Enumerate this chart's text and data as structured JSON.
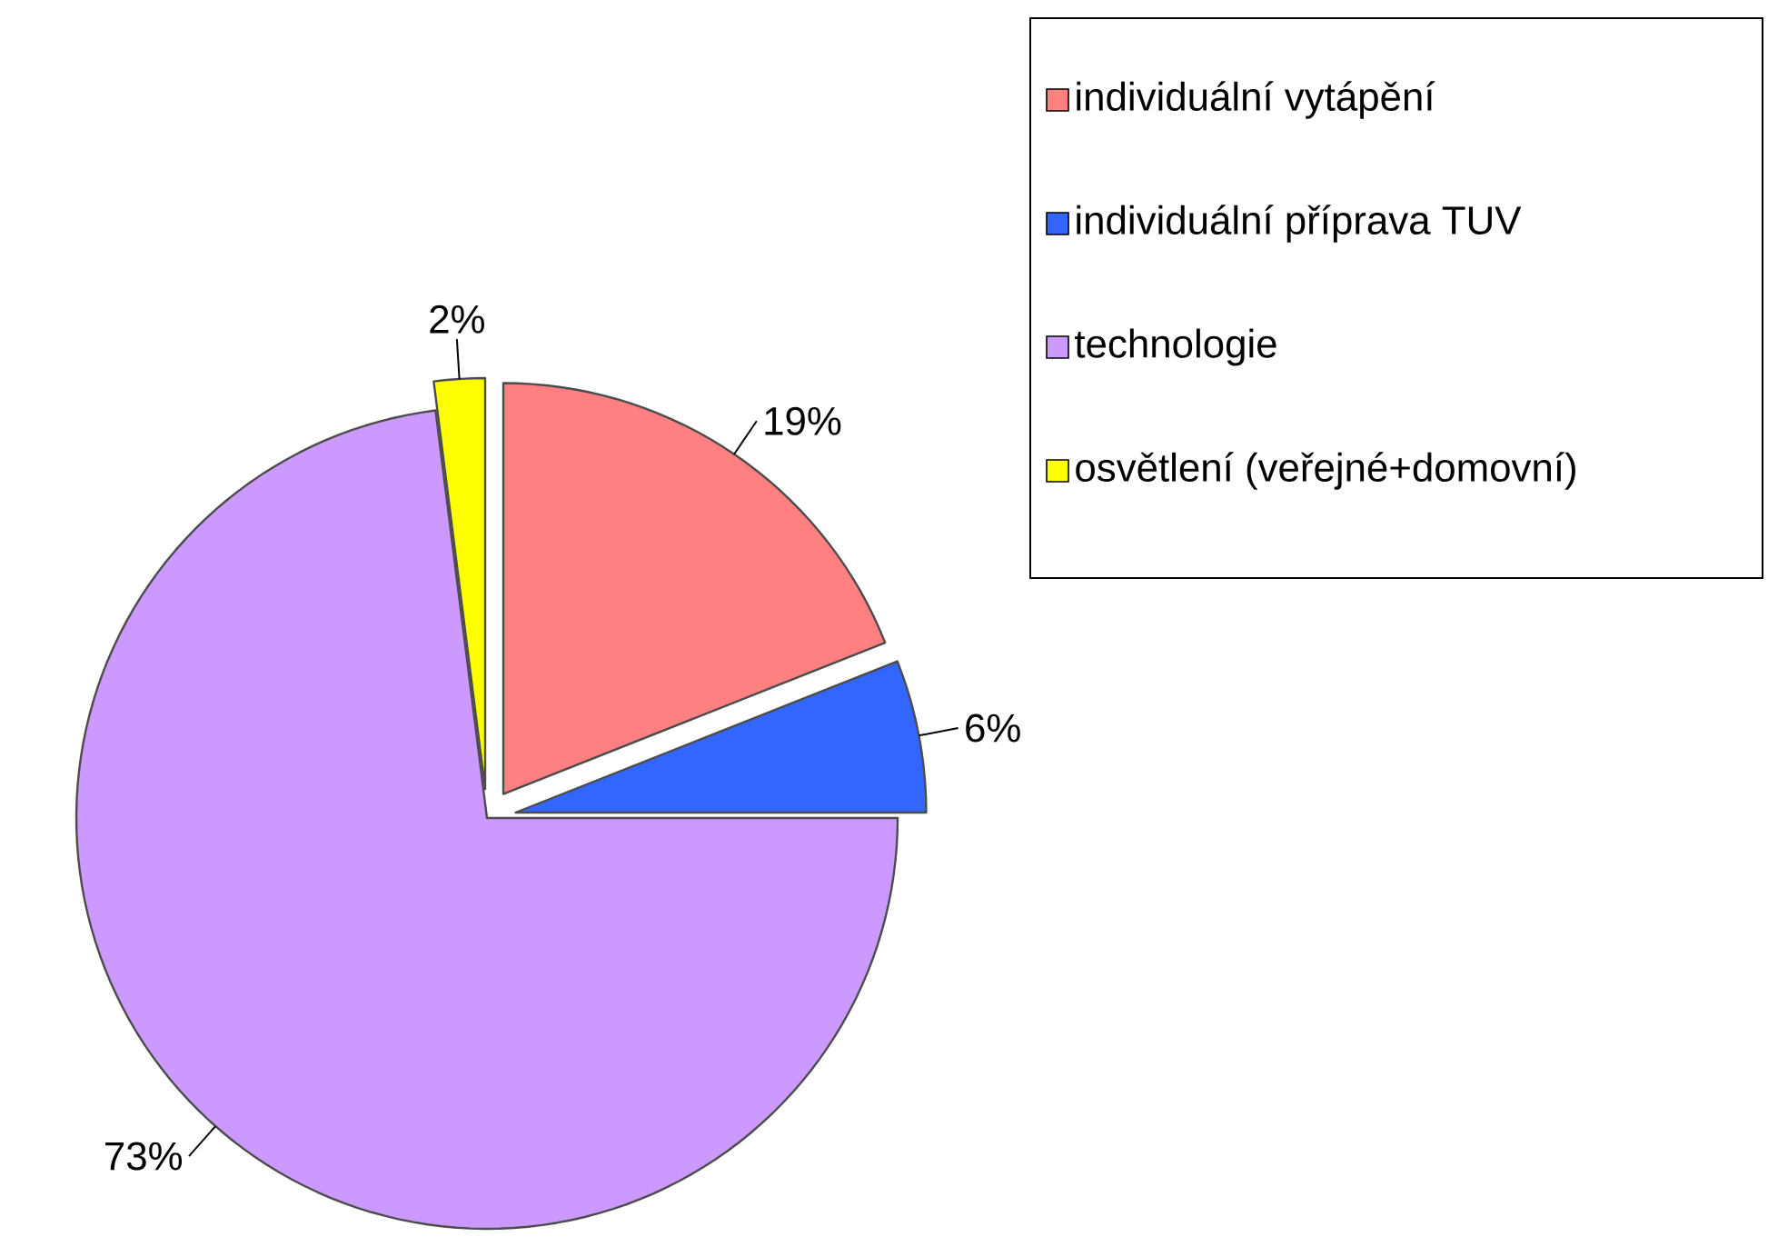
{
  "chart_data": {
    "type": "pie",
    "categories": [
      "individuální vytápění",
      "individuální příprava TUV",
      "technologie",
      "osvětlení (veřejné+domovní)"
    ],
    "values": [
      19,
      6,
      73,
      2
    ],
    "colors": [
      "#ff8080",
      "#3366ff",
      "#cc99ff",
      "#ffff00"
    ],
    "value_labels": [
      "19%",
      "6%",
      "73%",
      "2%"
    ],
    "legend": "top right"
  }
}
